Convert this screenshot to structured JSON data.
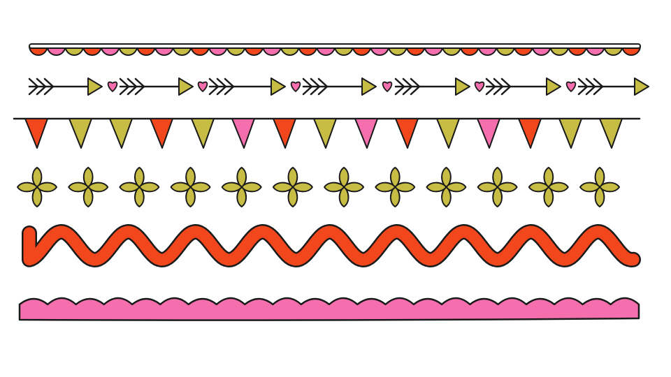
{
  "illustration": {
    "background": "#ffffff",
    "stroke_color": "#1a1a1a",
    "palette": {
      "orange": "#f2461d",
      "pink": "#f56fae",
      "olive": "#c7bd45"
    },
    "rows": [
      {
        "kind": "scallop-trim",
        "colors": [
          "orange",
          "pink",
          "olive"
        ]
      },
      {
        "kind": "arrows-with-hearts",
        "arrowhead_color": "olive",
        "heart_color": "pink"
      },
      {
        "kind": "bunting-flags",
        "colors": [
          "orange",
          "olive",
          "olive",
          "orange",
          "olive",
          "pink",
          "orange",
          "olive",
          "pink",
          "orange",
          "olive",
          "pink",
          "orange",
          "olive",
          "olive"
        ]
      },
      {
        "kind": "four-petal-flowers",
        "color": "olive",
        "count": 12
      },
      {
        "kind": "wavy-ribbon",
        "color": "orange"
      },
      {
        "kind": "scalloped-band",
        "color": "pink"
      }
    ]
  }
}
